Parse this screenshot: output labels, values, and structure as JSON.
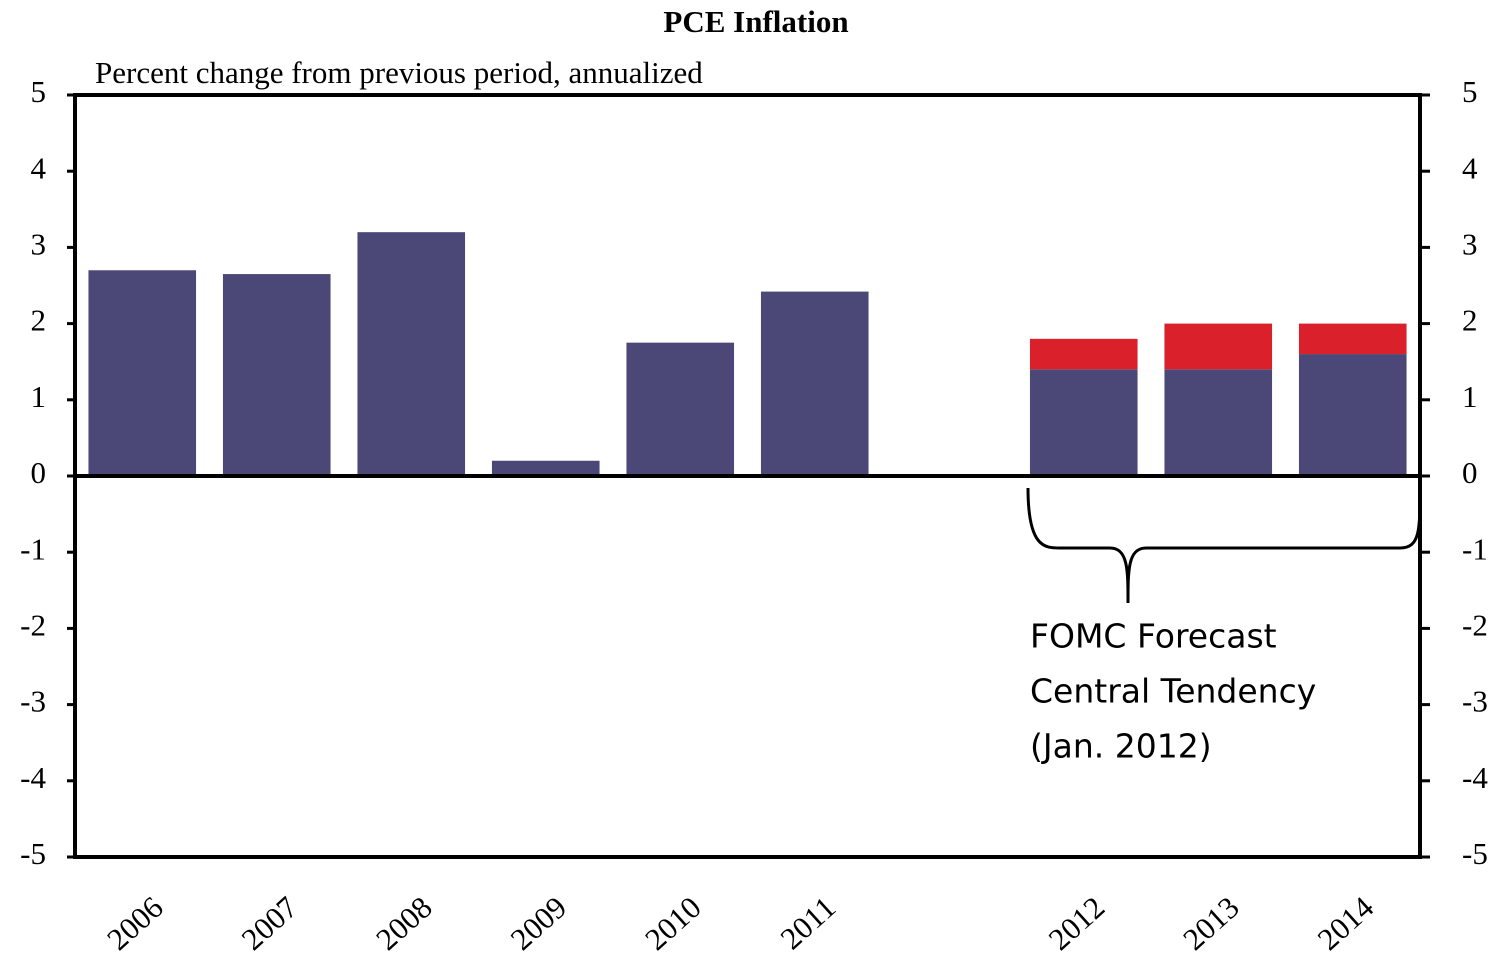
{
  "chart_data": {
    "type": "bar",
    "stacked": true,
    "title": "PCE Inflation",
    "subtitle": "Percent change from previous period, annualized",
    "categories": [
      "2006",
      "2007",
      "2008",
      "2009",
      "2010",
      "2011",
      null,
      "2012",
      "2013",
      "2014"
    ],
    "series": [
      {
        "color": "#4b4878",
        "values": [
          2.7,
          2.65,
          3.2,
          0.2,
          1.75,
          2.42,
          null,
          1.4,
          1.4,
          1.6
        ]
      },
      {
        "color": "#d9202b",
        "values": [
          null,
          null,
          null,
          null,
          null,
          null,
          null,
          0.4,
          0.6,
          0.4
        ]
      }
    ],
    "ylim": [
      -5,
      5
    ],
    "yticks": [
      -5,
      -4,
      -3,
      -2,
      -1,
      0,
      1,
      2,
      3,
      4,
      5
    ],
    "y2lim": [
      -5,
      5
    ],
    "y2ticks": [
      -5,
      -4,
      -3,
      -2,
      -1,
      0,
      1,
      2,
      3,
      4,
      5
    ],
    "annotation": [
      "FOMC Forecast",
      "Central Tendency",
      "(Jan. 2012)"
    ]
  }
}
